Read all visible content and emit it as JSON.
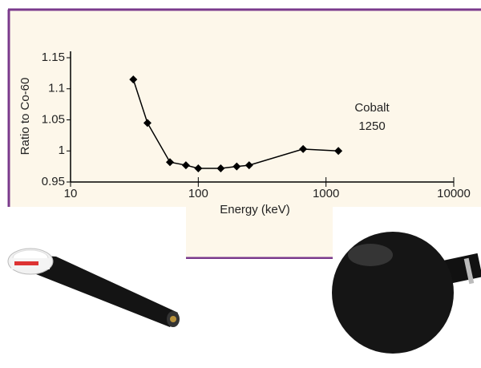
{
  "chart_data": {
    "type": "line",
    "x_label": "Energy (keV)",
    "y_label": "Ratio to Co-60",
    "annotation": [
      "Cobalt",
      "1250"
    ],
    "x": [
      31,
      40,
      60,
      80,
      100,
      150,
      200,
      250,
      662,
      1250
    ],
    "values": [
      1.115,
      1.045,
      0.982,
      0.977,
      0.972,
      0.972,
      0.975,
      0.977,
      1.003,
      1.0
    ],
    "color": "#000000",
    "xlim": [
      10,
      10000
    ],
    "xticks": [
      10,
      100,
      1000,
      10000
    ],
    "xlog": true,
    "ylim": [
      0.95,
      1.15
    ],
    "yticks": [
      0.95,
      1,
      1.05,
      1.1,
      1.15
    ]
  }
}
